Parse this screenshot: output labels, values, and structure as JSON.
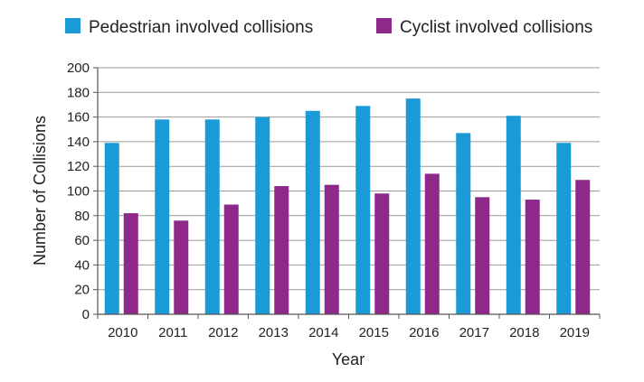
{
  "chart_data": {
    "type": "bar",
    "title": "",
    "xlabel": "Year",
    "ylabel": "Number of Collisions",
    "ylim": [
      0,
      200
    ],
    "yticks": [
      0,
      20,
      40,
      60,
      80,
      100,
      120,
      140,
      160,
      180,
      200
    ],
    "grid": true,
    "legend_position": "top",
    "categories": [
      "2010",
      "2011",
      "2012",
      "2013",
      "2014",
      "2015",
      "2016",
      "2017",
      "2018",
      "2019"
    ],
    "series": [
      {
        "name": "Pedestrian involved collisions",
        "color": "#1a9ad6",
        "values": [
          139,
          158,
          158,
          160,
          165,
          169,
          175,
          147,
          161,
          139
        ]
      },
      {
        "name": "Cyclist involved collisions",
        "color": "#8e2889",
        "values": [
          82,
          76,
          89,
          104,
          105,
          98,
          114,
          95,
          93,
          109
        ]
      }
    ]
  }
}
